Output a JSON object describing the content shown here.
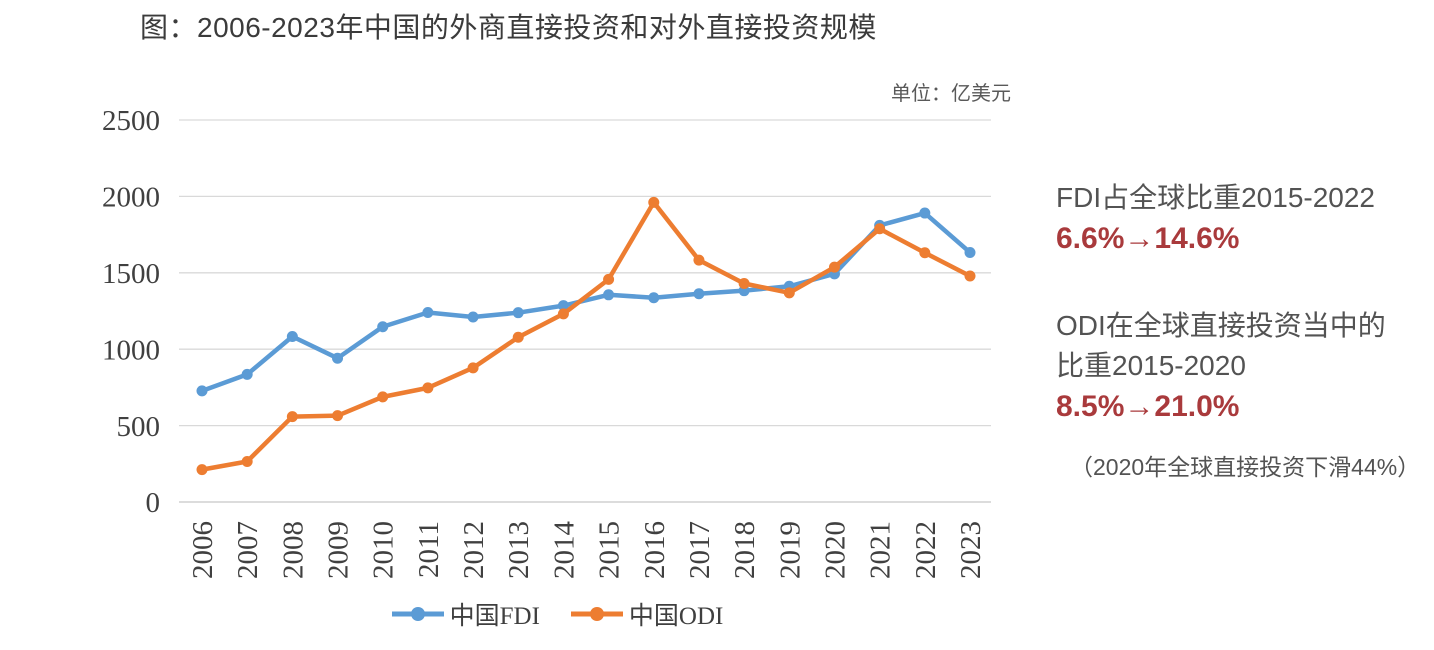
{
  "title": "图：2006-2023年中国的外商直接投资和对外直接投资规模",
  "unit_label": "单位：亿美元",
  "colors": {
    "fdi_blue": "#5B9BD5",
    "odi_orange": "#ED7D31",
    "accent_red": "#A93A3C",
    "text_dark": "#3B3B3B",
    "text_gray": "#595959",
    "text_gray2": "#535353",
    "tick_text": "#404040",
    "gridline": "#D9D9D9",
    "axis_line": "#C6C6C6"
  },
  "annotations": {
    "fdi_heading": "FDI占全球比重2015-2022",
    "fdi_change": "6.6%→14.6%",
    "odi_heading_line1": "ODI在全球直接投资当中的",
    "odi_heading_line2": "比重2015-2020",
    "odi_change": "8.5%→21.0%",
    "note": "（2020年全球直接投资下滑44%）"
  },
  "chart_data": {
    "type": "line",
    "title": "图：2006-2023年中国的外商直接投资和对外直接投资规模",
    "unit": "亿美元",
    "categories": [
      "2006",
      "2007",
      "2008",
      "2009",
      "2010",
      "2011",
      "2012",
      "2013",
      "2014",
      "2015",
      "2016",
      "2017",
      "2018",
      "2019",
      "2020",
      "2021",
      "2022",
      "2023"
    ],
    "series": [
      {
        "name": "中国FDI",
        "color": "#5B9BD5",
        "values": [
          727,
          835,
          1083,
          941,
          1147,
          1240,
          1211,
          1239,
          1285,
          1356,
          1337,
          1363,
          1383,
          1412,
          1493,
          1810,
          1891,
          1633
        ]
      },
      {
        "name": "中国ODI",
        "color": "#ED7D31",
        "values": [
          212,
          265,
          559,
          565,
          688,
          747,
          878,
          1078,
          1231,
          1457,
          1961,
          1583,
          1430,
          1369,
          1537,
          1788,
          1631,
          1479
        ]
      }
    ],
    "xlabel": "",
    "ylabel": "",
    "ylim": [
      0,
      2500
    ],
    "ytick_step": 500,
    "grid": true,
    "legend_position": "bottom",
    "marker": "circle"
  }
}
